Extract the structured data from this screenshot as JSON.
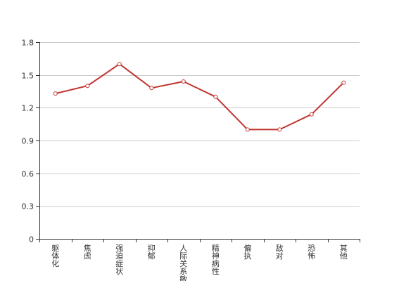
{
  "chart_data": {
    "type": "line",
    "title": "",
    "xlabel": "",
    "ylabel": "",
    "categories": [
      "躯体化",
      "焦虑",
      "强迫症状",
      "抑郁",
      "人际关系敏感",
      "精神病性",
      "偏执",
      "敌对",
      "恐怖",
      "其他"
    ],
    "series": [
      {
        "values": [
          1.33,
          1.4,
          1.6,
          1.38,
          1.44,
          1.3,
          1.0,
          1.0,
          1.14,
          1.43
        ]
      }
    ],
    "ylim": [
      0,
      1.8
    ],
    "yticks": [
      "0",
      "0.3",
      "0.6",
      "0.9",
      "1.2",
      "1.5",
      "1.8"
    ],
    "grid": true,
    "legend": "none",
    "colors": {
      "line": "#c23531",
      "grid": "#cccccc",
      "axis": "#333333",
      "point_fill": "#ffffff"
    }
  }
}
